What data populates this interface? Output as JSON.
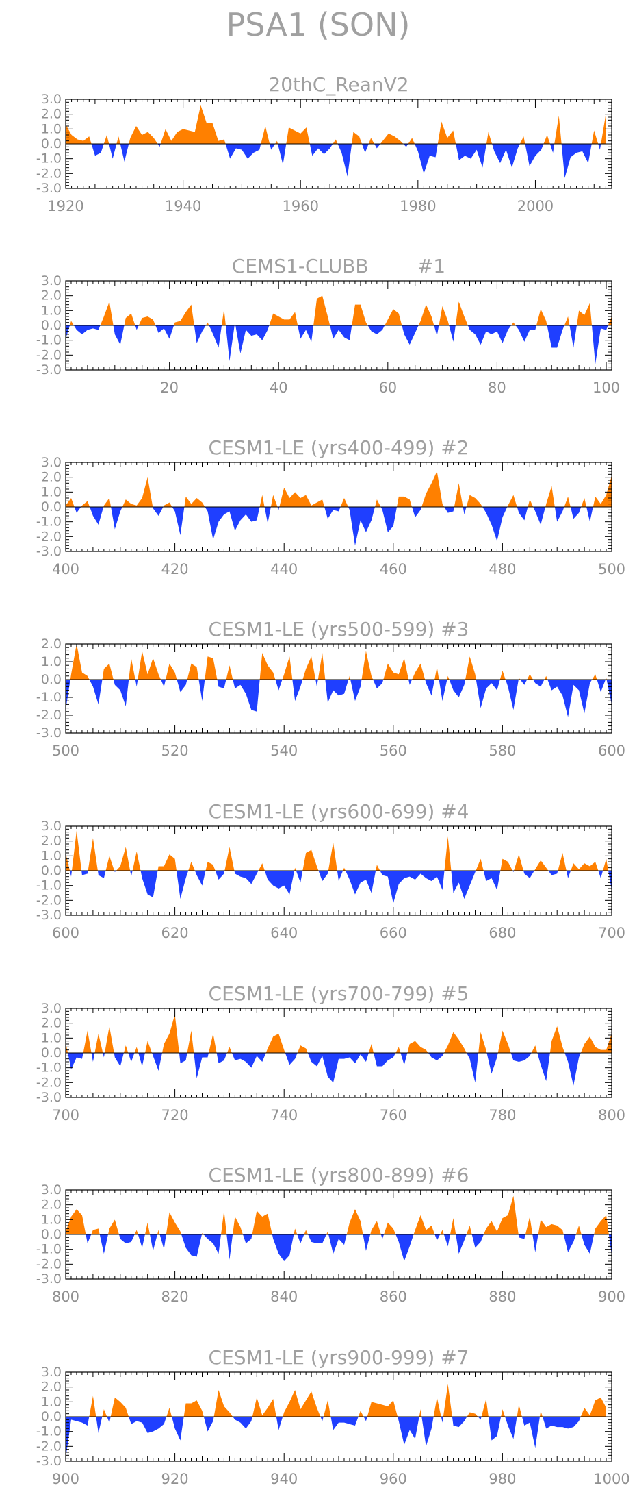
{
  "figure_title": "PSA1 (SON)",
  "colors": {
    "positive": "#ff8000",
    "negative": "#1f3fff",
    "frame": "#000000",
    "text": "#9a9a9a"
  },
  "chart_data": [
    {
      "type": "area",
      "title": "20thC_ReanV2",
      "xlim": [
        1920,
        2013
      ],
      "ylim": [
        -3.0,
        3.0
      ],
      "xticks": [
        1920,
        1940,
        1960,
        1980,
        2000
      ],
      "yticks": [
        "3.0",
        "2.0",
        "1.0",
        "0.0",
        "-1.0",
        "-2.0",
        "-3.0"
      ],
      "x": [
        1920,
        1921,
        1922,
        1923,
        1924,
        1925,
        1926,
        1927,
        1928,
        1929,
        1930,
        1931,
        1932,
        1933,
        1934,
        1935,
        1936,
        1937,
        1938,
        1939,
        1940,
        1941,
        1942,
        1943,
        1944,
        1945,
        1946,
        1947,
        1948,
        1949,
        1950,
        1951,
        1952,
        1953,
        1954,
        1955,
        1956,
        1957,
        1958,
        1959,
        1960,
        1961,
        1962,
        1963,
        1964,
        1965,
        1966,
        1967,
        1968,
        1969,
        1970,
        1971,
        1972,
        1973,
        1974,
        1975,
        1976,
        1977,
        1978,
        1979,
        1980,
        1981,
        1982,
        1983,
        1984,
        1985,
        1986,
        1987,
        1988,
        1989,
        1990,
        1991,
        1992,
        1993,
        1994,
        1995,
        1996,
        1997,
        1998,
        1999,
        2000,
        2001,
        2002,
        2003,
        2004,
        2005,
        2006,
        2007,
        2008,
        2009,
        2010,
        2011,
        2012
      ],
      "values": [
        1.3,
        0.6,
        0.3,
        0.2,
        0.5,
        -0.8,
        -0.6,
        0.6,
        -1.0,
        0.5,
        -1.2,
        0.4,
        1.2,
        0.6,
        0.8,
        0.4,
        -0.2,
        1.0,
        0.2,
        0.8,
        1.0,
        0.9,
        0.8,
        2.6,
        1.4,
        1.4,
        0.2,
        0.3,
        -1.0,
        -0.3,
        -0.4,
        -1.0,
        -0.6,
        -0.4,
        1.2,
        -0.4,
        0.2,
        -1.4,
        1.1,
        0.9,
        0.7,
        1.1,
        -0.8,
        -0.3,
        -0.7,
        -0.3,
        0.3,
        -0.6,
        -2.2,
        0.8,
        0.5,
        -0.6,
        0.4,
        -0.3,
        0.2,
        0.7,
        0.5,
        0.2,
        -0.2,
        0.4,
        -0.5,
        -2.0,
        -0.8,
        -0.9,
        1.5,
        0.4,
        0.9,
        -1.1,
        -0.8,
        -1.0,
        -0.4,
        -1.6,
        0.8,
        -0.5,
        -1.3,
        -0.4,
        -1.6,
        -0.3,
        0.5,
        -1.5,
        -0.8,
        -0.4,
        0.6,
        -0.6,
        1.9,
        -2.3,
        -0.9,
        -0.6,
        -0.5,
        -1.3,
        0.9,
        -0.4,
        2.0
      ]
    },
    {
      "type": "area",
      "title": "CEMS1-CLUBB        #1",
      "xlim": [
        1,
        101
      ],
      "ylim": [
        -3.0,
        3.0
      ],
      "xticks": [
        20,
        40,
        60,
        80,
        100
      ],
      "yticks": [
        "3.0",
        "2.0",
        "1.0",
        "0.0",
        "-1.0",
        "-2.0",
        "-3.0"
      ],
      "x_start": 1,
      "values": [
        -0.9,
        0.3,
        -0.3,
        -0.6,
        -0.3,
        -0.2,
        -0.3,
        0.6,
        1.6,
        -0.6,
        -1.3,
        0.5,
        0.8,
        -0.3,
        0.5,
        0.6,
        0.4,
        -0.5,
        -0.2,
        -0.9,
        0.2,
        0.3,
        0.9,
        1.4,
        -1.2,
        -0.4,
        0.2,
        -0.6,
        -1.5,
        1.1,
        -2.4,
        0.2,
        -1.9,
        -0.3,
        -0.7,
        -0.6,
        -1.0,
        -0.3,
        0.8,
        0.6,
        0.4,
        0.4,
        0.9,
        -0.9,
        -0.3,
        -1.1,
        1.8,
        2.0,
        0.6,
        -0.9,
        -0.3,
        -0.8,
        -1.0,
        1.4,
        1.4,
        0.2,
        -0.4,
        -0.6,
        -0.3,
        0.4,
        1.1,
        0.8,
        -0.6,
        -1.3,
        -0.5,
        0.3,
        1.4,
        0.6,
        -0.7,
        1.3,
        0.3,
        -1.1,
        1.6,
        0.6,
        -0.3,
        -0.6,
        -1.3,
        -0.4,
        -0.6,
        -0.4,
        -1.2,
        -0.3,
        0.2,
        -0.3,
        -1.1,
        -0.3,
        -0.3,
        1.1,
        0.3,
        -1.5,
        -1.5,
        -0.3,
        0.6,
        -1.5,
        1.0,
        0.7,
        1.5,
        -2.6,
        -0.2,
        -0.3,
        0.6
      ]
    },
    {
      "type": "area",
      "title": "CESM1-LE (yrs400-499) #2",
      "xlim": [
        400,
        500
      ],
      "ylim": [
        -3.0,
        3.0
      ],
      "xticks": [
        400,
        420,
        440,
        460,
        480,
        500
      ],
      "yticks": [
        "3.0",
        "2.0",
        "1.0",
        "0.0",
        "-1.0",
        "-2.0",
        "-3.0"
      ],
      "x_start": 400,
      "values": [
        0.1,
        0.6,
        -0.4,
        0.1,
        0.4,
        -0.6,
        -1.2,
        0.1,
        0.6,
        -1.5,
        -0.3,
        0.5,
        0.2,
        0.1,
        0.6,
        2.0,
        -0.1,
        -0.6,
        0.1,
        0.3,
        -0.3,
        -1.9,
        0.7,
        0.2,
        0.6,
        0.3,
        -0.3,
        -2.2,
        -1.0,
        -0.5,
        -0.3,
        -1.6,
        -0.9,
        -0.5,
        -1.0,
        -0.9,
        0.8,
        -1.1,
        0.8,
        -0.2,
        1.3,
        0.6,
        1.0,
        0.6,
        0.8,
        0.1,
        0.3,
        0.5,
        -0.8,
        -0.2,
        -0.3,
        0.6,
        -0.2,
        -2.6,
        -0.9,
        -1.7,
        -0.9,
        0.5,
        -0.2,
        -1.7,
        -1.3,
        0.7,
        0.7,
        0.5,
        -0.7,
        -0.2,
        0.9,
        1.6,
        2.4,
        0.2,
        -0.4,
        -0.3,
        1.6,
        -0.5,
        0.8,
        0.6,
        0.2,
        -0.4,
        -1.2,
        -2.3,
        -0.7,
        0.1,
        0.8,
        -0.4,
        -0.9,
        0.5,
        -0.3,
        -1.2,
        0.2,
        1.4,
        -1.0,
        -0.3,
        0.7,
        -0.8,
        -0.4,
        0.6,
        -1.0,
        0.7,
        0.2,
        0.8,
        2.1
      ]
    },
    {
      "type": "area",
      "title": "CESM1-LE (yrs500-599) #3",
      "xlim": [
        500,
        600
      ],
      "ylim": [
        -3.0,
        2.0
      ],
      "xticks": [
        500,
        520,
        540,
        560,
        580,
        600
      ],
      "yticks": [
        "2.0",
        "1.0",
        "0.0",
        "-1.0",
        "-2.0",
        "-3.0"
      ],
      "x_start": 500,
      "values": [
        -1.7,
        0.3,
        2.0,
        0.4,
        0.2,
        -0.4,
        -1.4,
        0.6,
        0.9,
        -0.3,
        -0.6,
        -1.5,
        1.2,
        -0.4,
        1.6,
        0.3,
        1.2,
        0.3,
        -0.4,
        0.9,
        0.4,
        -0.7,
        -0.3,
        0.9,
        0.7,
        -1.2,
        1.3,
        1.2,
        -0.4,
        -0.5,
        0.8,
        -0.5,
        -0.3,
        -0.8,
        -1.7,
        -1.8,
        1.5,
        0.8,
        0.4,
        -0.6,
        0.3,
        1.3,
        -1.2,
        -0.4,
        0.6,
        1.3,
        -0.4,
        1.5,
        -1.3,
        -0.6,
        -0.9,
        -0.8,
        0.2,
        -1.2,
        -0.4,
        1.6,
        0.2,
        -0.5,
        -0.2,
        0.9,
        0.4,
        0.3,
        1.2,
        -0.3,
        0.4,
        0.9,
        -0.2,
        -0.9,
        0.7,
        -1.2,
        0.2,
        -0.6,
        -1.0,
        -0.3,
        1.3,
        0.3,
        -1.6,
        -0.5,
        -0.2,
        -0.6,
        0.5,
        -0.4,
        -1.7,
        0.1,
        -0.3,
        0.3,
        -0.2,
        -0.4,
        0.2,
        -0.6,
        -0.4,
        -0.9,
        -2.1,
        -0.3,
        -0.6,
        -1.9,
        -0.2,
        0.3,
        -0.7,
        0.1,
        -1.4
      ]
    },
    {
      "type": "area",
      "title": "CESM1-LE (yrs600-699) #4",
      "xlim": [
        600,
        700
      ],
      "ylim": [
        -3.0,
        3.0
      ],
      "xticks": [
        600,
        620,
        640,
        660,
        680,
        700
      ],
      "yticks": [
        "3.0",
        "2.0",
        "1.0",
        "0.0",
        "-1.0",
        "-2.0",
        "-3.0"
      ],
      "x_start": 600,
      "values": [
        1.2,
        -0.4,
        2.7,
        -0.3,
        -0.2,
        2.2,
        -0.3,
        -0.5,
        1.0,
        -0.1,
        0.3,
        1.6,
        -0.4,
        1.3,
        -0.5,
        -1.6,
        -1.8,
        0.3,
        0.3,
        1.1,
        0.8,
        -1.9,
        -0.5,
        0.6,
        -0.3,
        -1.0,
        0.6,
        0.4,
        -0.6,
        -0.2,
        1.6,
        -0.2,
        -0.4,
        -0.5,
        -0.9,
        -0.2,
        0.5,
        -0.6,
        -1.0,
        -1.2,
        -1.0,
        -1.6,
        0.2,
        -0.8,
        1.2,
        1.4,
        0.3,
        -0.7,
        -0.2,
        1.9,
        -0.7,
        0.2,
        -0.6,
        -1.6,
        -0.8,
        -0.6,
        -1.5,
        0.4,
        -0.3,
        -0.4,
        -2.2,
        -0.9,
        -0.5,
        -0.4,
        -0.6,
        -0.2,
        -0.5,
        -0.7,
        -0.4,
        -1.3,
        2.3,
        -1.5,
        -0.8,
        -1.9,
        -1.0,
        -0.1,
        0.8,
        -0.7,
        -0.5,
        -1.3,
        0.8,
        0.6,
        -0.1,
        1.1,
        -0.2,
        -0.5,
        0.1,
        0.7,
        0.2,
        -0.3,
        -0.2,
        1.2,
        -0.5,
        0.5,
        0.1,
        0.5,
        0.3,
        0.6,
        -0.5,
        0.8,
        -1.3
      ]
    },
    {
      "type": "area",
      "title": "CESM1-LE (yrs700-799) #5",
      "xlim": [
        700,
        800
      ],
      "ylim": [
        -3.0,
        3.0
      ],
      "xticks": [
        700,
        720,
        740,
        760,
        780,
        800
      ],
      "yticks": [
        "3.0",
        "2.0",
        "1.0",
        "0.0",
        "-1.0",
        "-2.0",
        "-3.0"
      ],
      "x_start": 700,
      "values": [
        0.7,
        -1.1,
        -0.3,
        -0.4,
        1.5,
        -0.6,
        1.3,
        -0.3,
        1.8,
        -0.3,
        -0.9,
        0.5,
        -0.6,
        0.4,
        -0.9,
        0.8,
        -0.2,
        -1.2,
        0.6,
        1.3,
        2.6,
        -0.7,
        -0.5,
        1.5,
        -1.7,
        -0.3,
        -0.3,
        1.3,
        -0.7,
        -0.5,
        0.4,
        -0.5,
        -0.4,
        -0.6,
        -1.0,
        -0.2,
        -0.6,
        0.3,
        1.1,
        1.3,
        0.2,
        -0.8,
        -0.4,
        0.5,
        0.3,
        -0.6,
        -0.9,
        -0.2,
        -1.6,
        -2.0,
        -0.4,
        -0.4,
        -0.3,
        -0.7,
        -0.1,
        -0.6,
        0.6,
        -0.9,
        -0.9,
        -0.5,
        -0.3,
        0.4,
        -0.8,
        0.6,
        0.8,
        0.4,
        0.2,
        -0.3,
        -0.5,
        -0.2,
        0.5,
        1.4,
        0.9,
        0.3,
        -0.4,
        -2.0,
        1.4,
        0.2,
        -1.4,
        -0.3,
        1.5,
        0.6,
        -0.5,
        -0.6,
        -0.5,
        -0.2,
        0.5,
        -0.8,
        -1.9,
        0.8,
        1.8,
        0.4,
        -0.6,
        -2.2,
        -0.3,
        0.6,
        1.1,
        0.4,
        0.2,
        0.2,
        1.3
      ]
    },
    {
      "type": "area",
      "title": "CESM1-LE (yrs800-899) #6",
      "xlim": [
        800,
        900
      ],
      "ylim": [
        -3.0,
        3.0
      ],
      "xticks": [
        800,
        820,
        840,
        860,
        880,
        900
      ],
      "yticks": [
        "3.0",
        "2.0",
        "1.0",
        "0.0",
        "-1.0",
        "-2.0",
        "-3.0"
      ],
      "x_start": 800,
      "values": [
        0.2,
        1.2,
        1.7,
        1.3,
        -0.6,
        0.3,
        0.4,
        -1.3,
        0.4,
        1.0,
        -0.3,
        -0.6,
        -0.5,
        0.3,
        -0.9,
        0.8,
        -1.1,
        0.3,
        -1.0,
        1.5,
        0.8,
        0.2,
        -0.9,
        -1.4,
        -1.5,
        0.1,
        -0.3,
        -0.6,
        -1.3,
        1.6,
        -1.7,
        1.2,
        0.5,
        -0.6,
        -0.3,
        1.6,
        1.2,
        1.4,
        -0.3,
        -1.3,
        -1.8,
        -1.4,
        0.4,
        -0.6,
        0.3,
        -0.5,
        -0.6,
        -0.6,
        0.2,
        -1.3,
        -0.3,
        -0.7,
        0.8,
        1.7,
        0.9,
        -1.1,
        0.3,
        0.9,
        -0.3,
        0.8,
        0.4,
        -0.5,
        -1.8,
        -0.8,
        0.3,
        1.3,
        0.3,
        0.6,
        -0.4,
        0.3,
        -0.8,
        1.1,
        -1.3,
        -0.4,
        0.6,
        -0.9,
        -0.5,
        0.4,
        0.9,
        0.2,
        1.1,
        1.3,
        2.6,
        -0.2,
        -0.3,
        1.2,
        -1.2,
        1.0,
        0.5,
        0.7,
        0.6,
        0.3,
        -1.2,
        -0.5,
        0.6,
        -0.7,
        -1.3,
        0.4,
        0.9,
        1.3,
        -1.4
      ]
    },
    {
      "type": "area",
      "title": "CESM1-LE (yrs900-999) #7",
      "xlim": [
        900,
        1000
      ],
      "ylim": [
        -3.0,
        3.0
      ],
      "xticks": [
        900,
        920,
        940,
        960,
        980,
        1000
      ],
      "yticks": [
        "3.0",
        "2.0",
        "1.0",
        "0.0",
        "-1.0",
        "-2.0",
        "-3.0"
      ],
      "x_start": 900,
      "values": [
        -2.8,
        -0.2,
        -0.3,
        -0.4,
        -0.6,
        1.4,
        -1.1,
        0.5,
        -0.4,
        1.3,
        1.0,
        0.6,
        -0.5,
        -0.3,
        -0.4,
        -1.1,
        -1.0,
        -0.8,
        -0.5,
        0.6,
        -0.8,
        -1.6,
        0.9,
        0.9,
        1.1,
        0.4,
        -1.0,
        -0.3,
        1.8,
        0.7,
        0.3,
        -0.2,
        -0.4,
        -0.8,
        -0.3,
        1.3,
        0.1,
        0.6,
        1.2,
        -0.9,
        0.3,
        1.0,
        1.8,
        0.5,
        1.1,
        1.7,
        0.6,
        -0.3,
        1.1,
        -0.9,
        -0.4,
        -0.4,
        -0.5,
        -0.6,
        0.4,
        -0.3,
        1.0,
        0.9,
        0.8,
        0.7,
        1.1,
        -0.3,
        -1.9,
        -0.9,
        -1.5,
        0.5,
        -2.0,
        -0.8,
        1.3,
        -0.4,
        2.2,
        -0.6,
        -0.7,
        -0.3,
        0.3,
        0.2,
        -0.2,
        1.2,
        -1.6,
        -1.3,
        0.5,
        -0.6,
        -1.5,
        0.8,
        -0.6,
        -0.4,
        -2.1,
        0.4,
        -0.8,
        -0.6,
        -0.7,
        -0.7,
        -0.8,
        -0.7,
        -0.3,
        0.6,
        0.1,
        1.1,
        1.3,
        0.6
      ]
    }
  ]
}
